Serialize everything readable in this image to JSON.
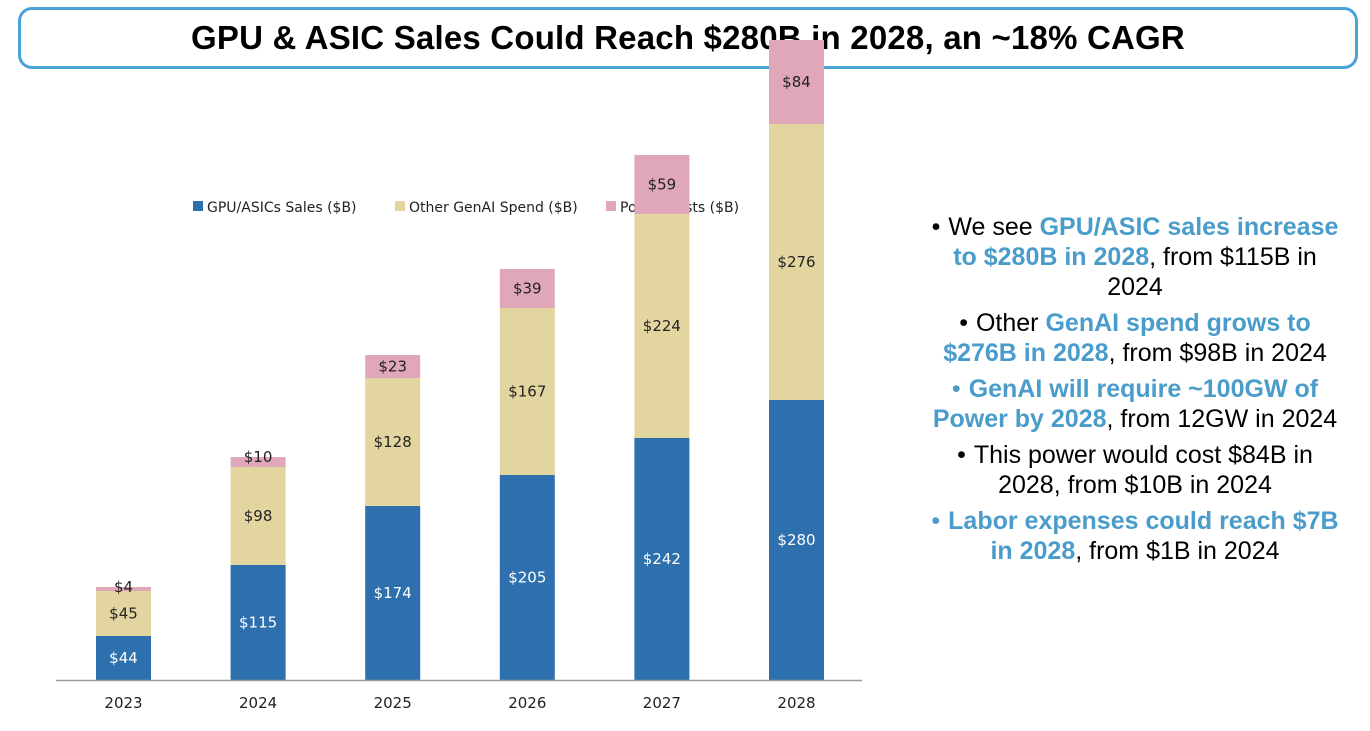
{
  "title": "GPU & ASIC Sales Could Reach $280B in 2028, an ~18% CAGR",
  "colors": {
    "accent": "#4a9ccb",
    "gpu": "#2e6fad",
    "genai": "#e3d5a0",
    "power": "#e0a7b8"
  },
  "chart_data": {
    "type": "bar",
    "stacked": true,
    "categories": [
      "2023",
      "2024",
      "2025",
      "2026",
      "2027",
      "2028"
    ],
    "series": [
      {
        "name": "GPU/ASICs Sales ($B)",
        "values": [
          44,
          115,
          174,
          205,
          242,
          280
        ],
        "labels": [
          "$44",
          "$115",
          "$174",
          "$205",
          "$242",
          "$280"
        ]
      },
      {
        "name": "Other GenAI Spend ($B)",
        "values": [
          45,
          98,
          128,
          167,
          224,
          276
        ],
        "labels": [
          "$45",
          "$98",
          "$128",
          "$167",
          "$224",
          "$276"
        ]
      },
      {
        "name": "Power Costs ($B)",
        "values": [
          4,
          10,
          23,
          39,
          59,
          84
        ],
        "labels": [
          "$4",
          "$10",
          "$23",
          "$39",
          "$59",
          "$84"
        ]
      }
    ],
    "legend_position": "top",
    "grid": false,
    "ylim": [
      0,
      640
    ]
  },
  "bullets": [
    [
      {
        "t": "We see "
      },
      {
        "t": "GPU/ASIC sales increase to $280B in 2028",
        "hl": true
      },
      {
        "t": ", from $115B in 2024"
      }
    ],
    [
      {
        "t": "Other "
      },
      {
        "t": "GenAI spend grows to $276B in 2028",
        "hl": true
      },
      {
        "t": ", from $98B in 2024"
      }
    ],
    [
      {
        "t": "GenAI will require ~100GW of Power by 2028",
        "hl": true
      },
      {
        "t": ", from 12GW in 2024"
      }
    ],
    [
      {
        "t": "This power would cost $84B in 2028, from $10B in 2024"
      }
    ],
    [
      {
        "t": "Labor expenses could reach $7B in 2028",
        "hl": true
      },
      {
        "t": ", from $1B in 2024"
      }
    ]
  ],
  "bullet_dot_blue": [
    false,
    false,
    true,
    false,
    true
  ]
}
